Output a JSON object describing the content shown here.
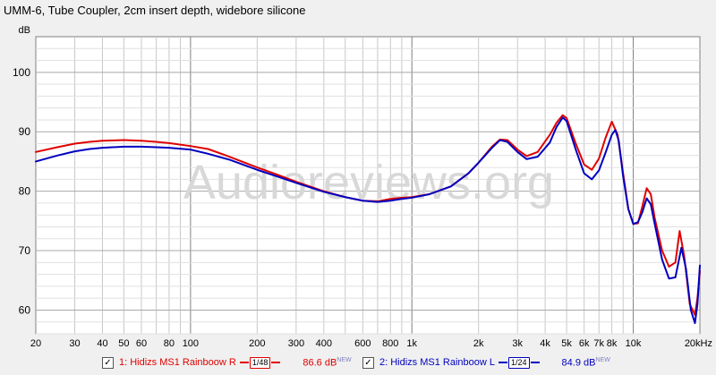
{
  "title": "UMM-6, Tube Coupler, 2cm insert depth, widebore silicone",
  "watermark": "Audioreviews.org",
  "chart_data": {
    "type": "line",
    "ylabel": "dB",
    "xlabel": "",
    "xscale": "log",
    "xlim": [
      20,
      20000
    ],
    "ylim": [
      56,
      106
    ],
    "yticks": [
      60,
      70,
      80,
      90,
      100
    ],
    "xticks": [
      {
        "v": 20,
        "l": "20"
      },
      {
        "v": 30,
        "l": "30"
      },
      {
        "v": 40,
        "l": "40"
      },
      {
        "v": 50,
        "l": "50"
      },
      {
        "v": 60,
        "l": "60"
      },
      {
        "v": 80,
        "l": "80"
      },
      {
        "v": 100,
        "l": "100"
      },
      {
        "v": 200,
        "l": "200"
      },
      {
        "v": 300,
        "l": "300"
      },
      {
        "v": 400,
        "l": "400"
      },
      {
        "v": 600,
        "l": "600"
      },
      {
        "v": 800,
        "l": "800"
      },
      {
        "v": 1000,
        "l": "1k"
      },
      {
        "v": 2000,
        "l": "2k"
      },
      {
        "v": 3000,
        "l": "3k"
      },
      {
        "v": 4000,
        "l": "4k"
      },
      {
        "v": 5000,
        "l": "5k"
      },
      {
        "v": 6000,
        "l": "6k"
      },
      {
        "v": 7000,
        "l": "7k"
      },
      {
        "v": 8000,
        "l": "8k"
      },
      {
        "v": 10000,
        "l": "10k"
      },
      {
        "v": 20000,
        "l": "20kHz"
      }
    ],
    "grid": true,
    "legend_position": "bottom",
    "series": [
      {
        "name": "1: Hidizs MS1 Rainboow R",
        "color": "#e00000",
        "smoothing": "1/48",
        "level": "86.6 dB",
        "points": [
          [
            20,
            86.6
          ],
          [
            25,
            87.4
          ],
          [
            30,
            88.0
          ],
          [
            35,
            88.3
          ],
          [
            40,
            88.5
          ],
          [
            50,
            88.6
          ],
          [
            60,
            88.5
          ],
          [
            70,
            88.3
          ],
          [
            80,
            88.1
          ],
          [
            100,
            87.6
          ],
          [
            120,
            87.1
          ],
          [
            150,
            85.8
          ],
          [
            200,
            84.0
          ],
          [
            250,
            82.7
          ],
          [
            300,
            81.6
          ],
          [
            400,
            80.0
          ],
          [
            500,
            79.0
          ],
          [
            600,
            78.4
          ],
          [
            700,
            78.3
          ],
          [
            800,
            78.7
          ],
          [
            900,
            78.9
          ],
          [
            1000,
            79.0
          ],
          [
            1200,
            79.5
          ],
          [
            1500,
            80.8
          ],
          [
            1800,
            83.0
          ],
          [
            2000,
            84.8
          ],
          [
            2300,
            87.5
          ],
          [
            2500,
            88.7
          ],
          [
            2700,
            88.6
          ],
          [
            3000,
            87.0
          ],
          [
            3300,
            85.9
          ],
          [
            3700,
            86.6
          ],
          [
            4200,
            89.5
          ],
          [
            4500,
            91.5
          ],
          [
            4800,
            92.8
          ],
          [
            5000,
            92.3
          ],
          [
            5500,
            88.0
          ],
          [
            6000,
            84.5
          ],
          [
            6500,
            83.6
          ],
          [
            7000,
            85.5
          ],
          [
            7500,
            89.0
          ],
          [
            8000,
            91.7
          ],
          [
            8500,
            89.5
          ],
          [
            9000,
            83.0
          ],
          [
            9500,
            77.0
          ],
          [
            10000,
            74.5
          ],
          [
            10500,
            74.6
          ],
          [
            11000,
            77.5
          ],
          [
            11500,
            80.5
          ],
          [
            12000,
            79.5
          ],
          [
            12500,
            75.5
          ],
          [
            13500,
            70.0
          ],
          [
            14500,
            67.3
          ],
          [
            15500,
            68.0
          ],
          [
            16200,
            73.3
          ],
          [
            17000,
            69.0
          ],
          [
            18000,
            61.0
          ],
          [
            19000,
            59.2
          ],
          [
            19500,
            62.0
          ],
          [
            20000,
            66.5
          ]
        ]
      },
      {
        "name": "2: Hidizs MS1 Rainboow L",
        "color": "#0000c0",
        "smoothing": "1/24",
        "level": "84.9 dB",
        "points": [
          [
            20,
            85.0
          ],
          [
            25,
            86.0
          ],
          [
            30,
            86.7
          ],
          [
            35,
            87.1
          ],
          [
            40,
            87.3
          ],
          [
            50,
            87.5
          ],
          [
            60,
            87.5
          ],
          [
            70,
            87.4
          ],
          [
            80,
            87.3
          ],
          [
            100,
            87.0
          ],
          [
            120,
            86.3
          ],
          [
            150,
            85.3
          ],
          [
            200,
            83.6
          ],
          [
            250,
            82.4
          ],
          [
            300,
            81.4
          ],
          [
            400,
            79.9
          ],
          [
            500,
            79.0
          ],
          [
            600,
            78.4
          ],
          [
            700,
            78.2
          ],
          [
            800,
            78.4
          ],
          [
            900,
            78.7
          ],
          [
            1000,
            78.9
          ],
          [
            1200,
            79.5
          ],
          [
            1500,
            80.8
          ],
          [
            1800,
            83.0
          ],
          [
            2000,
            84.8
          ],
          [
            2300,
            87.3
          ],
          [
            2500,
            88.6
          ],
          [
            2700,
            88.3
          ],
          [
            3000,
            86.6
          ],
          [
            3300,
            85.4
          ],
          [
            3700,
            85.8
          ],
          [
            4200,
            88.2
          ],
          [
            4500,
            90.8
          ],
          [
            4800,
            92.4
          ],
          [
            5000,
            91.8
          ],
          [
            5500,
            87.0
          ],
          [
            6000,
            83.0
          ],
          [
            6500,
            82.0
          ],
          [
            7000,
            83.5
          ],
          [
            7500,
            86.5
          ],
          [
            8000,
            89.5
          ],
          [
            8300,
            90.3
          ],
          [
            8600,
            88.5
          ],
          [
            9000,
            82.5
          ],
          [
            9500,
            77.0
          ],
          [
            10000,
            74.5
          ],
          [
            10500,
            74.8
          ],
          [
            11000,
            76.5
          ],
          [
            11500,
            78.8
          ],
          [
            12000,
            77.8
          ],
          [
            12500,
            74.5
          ],
          [
            13500,
            68.5
          ],
          [
            14500,
            65.3
          ],
          [
            15500,
            65.5
          ],
          [
            16500,
            70.5
          ],
          [
            17300,
            67.0
          ],
          [
            18200,
            60.0
          ],
          [
            19000,
            57.8
          ],
          [
            19500,
            61.0
          ],
          [
            20000,
            67.5
          ]
        ]
      }
    ]
  },
  "legend": {
    "items": [
      {
        "label": "1: Hidizs MS1 Rainboow R",
        "smoothing": "1/48",
        "value": "86.6 dB",
        "badge": "NEW",
        "color": "#e00000",
        "checked": "✓"
      },
      {
        "label": "2: Hidizs MS1 Rainboow L",
        "smoothing": "1/24",
        "value": "84.9 dB",
        "badge": "NEW",
        "color": "#0000c0",
        "checked": "✓"
      }
    ]
  }
}
